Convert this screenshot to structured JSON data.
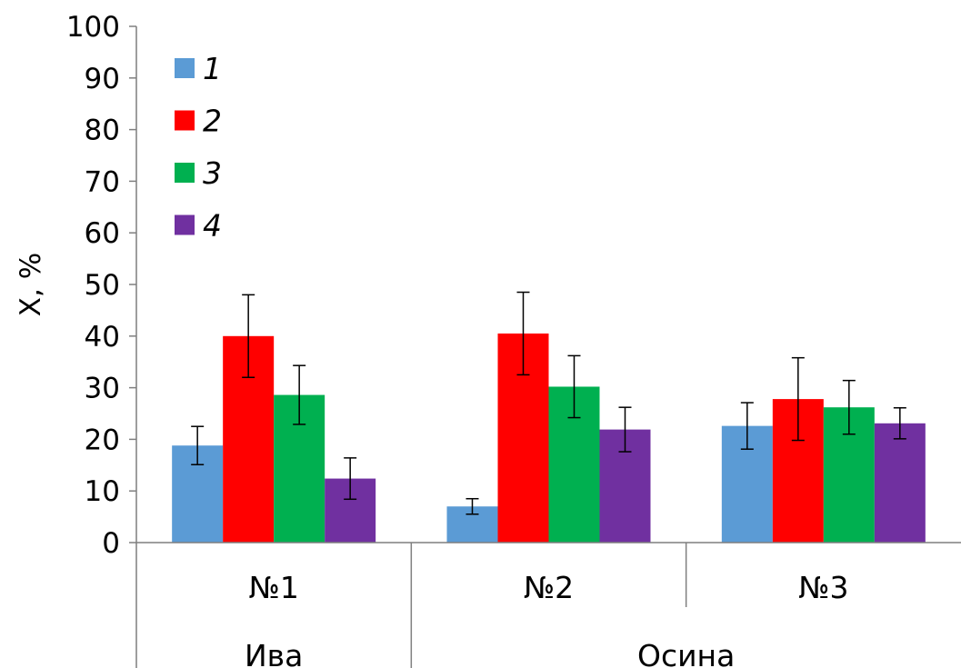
{
  "chart_data": {
    "type": "bar",
    "title": "",
    "xlabel": "",
    "ylabel": "X, %",
    "ylim": [
      0,
      100
    ],
    "yticks": [
      0,
      10,
      20,
      30,
      40,
      50,
      60,
      70,
      80,
      90,
      100
    ],
    "grid": false,
    "legend_position": "top-left",
    "categories": [
      "№1",
      "№2",
      "№3"
    ],
    "groups": [
      {
        "label": "Ива",
        "categories": [
          "№1"
        ]
      },
      {
        "label": "Осина",
        "categories": [
          "№2",
          "№3"
        ]
      }
    ],
    "series": [
      {
        "name": "1",
        "color": "#5b9bd5",
        "values": [
          18.8,
          7.0,
          22.6
        ],
        "errors": [
          3.7,
          1.5,
          4.5
        ]
      },
      {
        "name": "2",
        "color": "#ff0000",
        "values": [
          40.0,
          40.5,
          27.8
        ],
        "errors": [
          8.0,
          8.0,
          8.0
        ]
      },
      {
        "name": "3",
        "color": "#00b050",
        "values": [
          28.6,
          30.2,
          26.2
        ],
        "errors": [
          5.7,
          6.0,
          5.2
        ]
      },
      {
        "name": "4",
        "color": "#7030a0",
        "values": [
          12.4,
          21.9,
          23.1
        ],
        "errors": [
          4.0,
          4.3,
          3.0
        ]
      }
    ]
  }
}
